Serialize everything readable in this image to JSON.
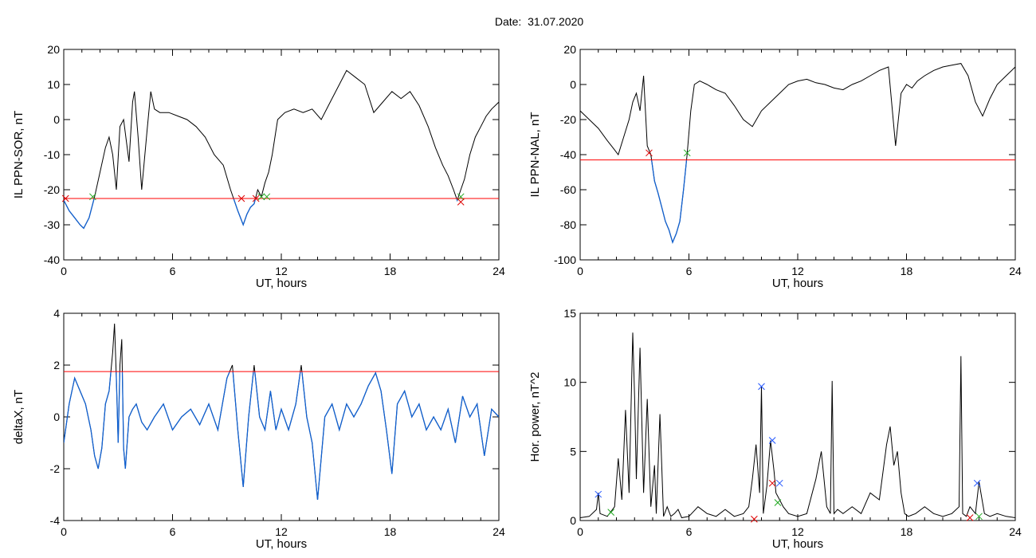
{
  "figure": {
    "title": "Date:  31.07.2020"
  },
  "colors": {
    "trace": "#000000",
    "threshold": "#ff0000",
    "below": "#1060d0",
    "start_marker": "#dd0000",
    "end_marker": "#22aa22",
    "peak_marker": "#2255ff"
  },
  "chart_data": [
    {
      "type": "line",
      "ylabel": "IL PPN-SOR, nT",
      "xlabel": "UT, hours",
      "xlim": [
        0,
        24
      ],
      "ylim": [
        -40,
        20
      ],
      "xticks": [
        "0",
        "6",
        "12",
        "18",
        "24"
      ],
      "yticks": [
        "-40",
        "-30",
        "-20",
        "-10",
        "0",
        "10",
        "20"
      ],
      "threshold": -22.5,
      "series": [
        {
          "x": [
            0,
            0.3,
            0.6,
            0.9,
            1.1,
            1.4,
            1.7,
            2.0,
            2.3,
            2.5,
            2.7,
            2.9,
            3.1,
            3.3,
            3.5,
            3.6,
            3.8,
            3.9,
            4.1,
            4.3,
            4.6,
            4.8,
            5.0,
            5.3,
            5.8,
            6.3,
            6.8,
            7.3,
            7.8,
            8.3,
            8.8,
            9.2,
            9.6,
            9.9,
            10.1,
            10.3,
            10.5,
            10.7,
            10.9,
            11.1,
            11.3,
            11.5,
            11.8,
            12.2,
            12.7,
            13.2,
            13.7,
            14.2,
            14.7,
            15.2,
            15.6,
            16.1,
            16.6,
            17.1,
            17.6,
            18.1,
            18.6,
            19.1,
            19.6,
            20.1,
            20.5,
            20.9,
            21.2,
            21.5,
            21.7,
            21.9,
            22.1,
            22.4,
            22.7,
            23.0,
            23.3,
            23.6,
            24.0
          ],
          "values": [
            -23,
            -26,
            -28,
            -30,
            -31,
            -28,
            -22,
            -15,
            -8,
            -5,
            -10,
            -20,
            -2,
            0,
            -8,
            -12,
            5,
            8,
            -5,
            -20,
            -3,
            8,
            3,
            2,
            2,
            1,
            0,
            -2,
            -5,
            -10,
            -13,
            -20,
            -26,
            -30,
            -27,
            -25,
            -24,
            -20,
            -22,
            -18,
            -15,
            -10,
            0,
            2,
            3,
            2,
            3,
            0,
            5,
            10,
            14,
            12,
            10,
            2,
            5,
            8,
            6,
            8,
            4,
            -2,
            -8,
            -13,
            -16,
            -20,
            -23,
            -20,
            -17,
            -10,
            -5,
            -2,
            1,
            3,
            5
          ]
        }
      ],
      "markers": [
        {
          "x": 0.1,
          "y": -22.5,
          "kind": "start"
        },
        {
          "x": 1.6,
          "y": -22.0,
          "kind": "end"
        },
        {
          "x": 9.8,
          "y": -22.5,
          "kind": "start"
        },
        {
          "x": 10.6,
          "y": -22.5,
          "kind": "start"
        },
        {
          "x": 10.9,
          "y": -22.0,
          "kind": "end"
        },
        {
          "x": 11.2,
          "y": -22.0,
          "kind": "end"
        },
        {
          "x": 21.9,
          "y": -22.0,
          "kind": "end"
        },
        {
          "x": 21.9,
          "y": -23.5,
          "kind": "start"
        }
      ]
    },
    {
      "type": "line",
      "ylabel": "IL PPN-NAL, nT",
      "xlabel": "UT, hours",
      "xlim": [
        0,
        24
      ],
      "ylim": [
        -100,
        20
      ],
      "xticks": [
        "0",
        "6",
        "12",
        "18",
        "24"
      ],
      "yticks": [
        "-100",
        "-80",
        "-60",
        "-40",
        "-20",
        "0",
        "20"
      ],
      "threshold": -43,
      "series": [
        {
          "x": [
            0,
            0.5,
            1.0,
            1.5,
            1.8,
            2.1,
            2.4,
            2.7,
            2.9,
            3.1,
            3.3,
            3.5,
            3.7,
            3.9,
            4.1,
            4.3,
            4.5,
            4.7,
            4.9,
            5.1,
            5.3,
            5.5,
            5.7,
            5.9,
            6.1,
            6.3,
            6.6,
            7.0,
            7.5,
            8.0,
            8.5,
            9.0,
            9.5,
            10.0,
            10.5,
            11.0,
            11.5,
            12.0,
            12.5,
            13.0,
            13.5,
            14.0,
            14.5,
            15.0,
            15.5,
            16.0,
            16.5,
            17.0,
            17.4,
            17.7,
            18.0,
            18.3,
            18.6,
            19.0,
            19.5,
            20.0,
            20.5,
            21.0,
            21.4,
            21.8,
            22.2,
            22.6,
            23.0,
            23.5,
            24.0
          ],
          "values": [
            -15,
            -20,
            -25,
            -32,
            -36,
            -40,
            -30,
            -20,
            -10,
            -5,
            -15,
            5,
            -35,
            -40,
            -55,
            -62,
            -70,
            -78,
            -83,
            -90,
            -85,
            -78,
            -60,
            -40,
            -15,
            0,
            2,
            0,
            -3,
            -5,
            -12,
            -20,
            -24,
            -15,
            -10,
            -5,
            0,
            2,
            3,
            1,
            0,
            -2,
            -3,
            0,
            2,
            5,
            8,
            10,
            -35,
            -5,
            0,
            -2,
            2,
            5,
            8,
            10,
            11,
            12,
            5,
            -10,
            -18,
            -8,
            0,
            5,
            10
          ]
        }
      ],
      "markers": [
        {
          "x": 3.8,
          "y": -39,
          "kind": "start"
        },
        {
          "x": 5.9,
          "y": -39,
          "kind": "end"
        }
      ]
    },
    {
      "type": "line",
      "ylabel": "deltaX, nT",
      "xlabel": "UT, hours",
      "xlim": [
        0,
        24
      ],
      "ylim": [
        -4,
        4
      ],
      "xticks": [
        "0",
        "6",
        "12",
        "18",
        "24"
      ],
      "yticks": [
        "-4",
        "-2",
        "0",
        "2",
        "4"
      ],
      "threshold": 1.75,
      "series": [
        {
          "x": [
            0,
            0.3,
            0.6,
            0.9,
            1.2,
            1.5,
            1.7,
            1.9,
            2.1,
            2.3,
            2.5,
            2.7,
            2.8,
            2.9,
            3.0,
            3.1,
            3.2,
            3.3,
            3.4,
            3.6,
            3.8,
            4.0,
            4.3,
            4.6,
            5.0,
            5.5,
            6.0,
            6.5,
            7.0,
            7.5,
            8.0,
            8.5,
            9.0,
            9.3,
            9.6,
            9.9,
            10.2,
            10.5,
            10.8,
            11.1,
            11.4,
            11.7,
            12.0,
            12.4,
            12.8,
            13.1,
            13.4,
            13.7,
            14.0,
            14.4,
            14.8,
            15.2,
            15.6,
            16.0,
            16.4,
            16.8,
            17.2,
            17.5,
            17.8,
            18.1,
            18.4,
            18.8,
            19.2,
            19.6,
            20.0,
            20.4,
            20.8,
            21.2,
            21.6,
            22.0,
            22.4,
            22.8,
            23.2,
            23.6,
            24.0
          ],
          "values": [
            -1.0,
            0.5,
            1.5,
            1.0,
            0.5,
            -0.5,
            -1.5,
            -2.0,
            -1.2,
            0.5,
            1.0,
            2.5,
            3.6,
            1.5,
            -1.0,
            2.0,
            3.0,
            -1.2,
            -2.0,
            0.0,
            0.3,
            0.5,
            -0.2,
            -0.5,
            0.0,
            0.5,
            -0.5,
            0.0,
            0.3,
            -0.3,
            0.5,
            -0.5,
            1.5,
            2.0,
            -0.5,
            -2.7,
            0.0,
            2.0,
            0.0,
            -0.5,
            1.0,
            -0.5,
            0.3,
            -0.5,
            0.5,
            2.0,
            0.0,
            -1.0,
            -3.2,
            0.0,
            0.5,
            -0.5,
            0.5,
            0.0,
            0.5,
            1.2,
            1.7,
            1.0,
            -0.5,
            -2.2,
            0.5,
            1.0,
            0.0,
            0.5,
            -0.5,
            0.0,
            -0.5,
            0.3,
            -1.0,
            0.8,
            0.0,
            0.5,
            -1.5,
            0.3,
            0.0
          ]
        }
      ]
    },
    {
      "type": "line",
      "ylabel": "Hor. power, nT^2",
      "xlabel": "UT, hours",
      "xlim": [
        0,
        24
      ],
      "ylim": [
        0,
        15
      ],
      "xticks": [
        "0",
        "6",
        "12",
        "18",
        "24"
      ],
      "yticks": [
        "0",
        "5",
        "10",
        "15"
      ],
      "series": [
        {
          "x": [
            0,
            0.5,
            0.9,
            1.0,
            1.1,
            1.5,
            1.9,
            2.1,
            2.3,
            2.5,
            2.7,
            2.9,
            3.0,
            3.1,
            3.3,
            3.5,
            3.7,
            3.9,
            4.1,
            4.2,
            4.4,
            4.6,
            4.8,
            5.0,
            5.2,
            5.4,
            5.6,
            6.0,
            6.5,
            7.0,
            7.5,
            8.0,
            8.5,
            9.0,
            9.3,
            9.5,
            9.7,
            9.9,
            10.0,
            10.1,
            10.3,
            10.5,
            10.7,
            10.8,
            11.0,
            11.2,
            11.5,
            12.0,
            12.5,
            13.0,
            13.3,
            13.6,
            13.8,
            13.9,
            14.0,
            14.2,
            14.5,
            15.0,
            15.5,
            16.0,
            16.5,
            16.9,
            17.1,
            17.3,
            17.5,
            17.7,
            17.9,
            18.1,
            18.5,
            19.0,
            19.5,
            20.0,
            20.5,
            20.9,
            21.0,
            21.1,
            21.3,
            21.5,
            21.8,
            22.0,
            22.3,
            22.6,
            23.0,
            23.5,
            24.0
          ],
          "values": [
            0.2,
            0.3,
            0.8,
            2.0,
            0.5,
            0.3,
            1.0,
            4.5,
            1.5,
            8.0,
            2.0,
            13.6,
            9.0,
            3.0,
            12.5,
            2.0,
            8.8,
            1.0,
            4.0,
            0.5,
            7.7,
            0.3,
            1.0,
            0.3,
            0.5,
            0.8,
            0.2,
            0.3,
            1.0,
            0.5,
            0.3,
            0.8,
            0.3,
            0.5,
            1.0,
            3.0,
            5.5,
            2.0,
            9.7,
            0.5,
            2.5,
            5.8,
            3.5,
            2.0,
            1.5,
            1.0,
            0.5,
            0.3,
            0.5,
            3.0,
            5.0,
            1.0,
            0.5,
            10.1,
            0.5,
            0.8,
            0.5,
            1.0,
            0.5,
            2.0,
            1.5,
            5.5,
            6.8,
            4.0,
            5.0,
            2.0,
            0.5,
            0.3,
            0.5,
            1.0,
            0.5,
            0.3,
            0.5,
            1.0,
            11.9,
            0.5,
            0.3,
            1.0,
            0.5,
            2.8,
            0.5,
            0.3,
            0.5,
            0.3,
            0.2
          ]
        }
      ],
      "markers": [
        {
          "x": 1.0,
          "y": 1.9,
          "kind": "peak"
        },
        {
          "x": 1.7,
          "y": 0.6,
          "kind": "end"
        },
        {
          "x": 10.0,
          "y": 9.7,
          "kind": "peak"
        },
        {
          "x": 9.6,
          "y": 0.1,
          "kind": "start"
        },
        {
          "x": 10.6,
          "y": 5.8,
          "kind": "peak"
        },
        {
          "x": 10.6,
          "y": 2.7,
          "kind": "start"
        },
        {
          "x": 11.0,
          "y": 2.7,
          "kind": "peak"
        },
        {
          "x": 10.9,
          "y": 1.3,
          "kind": "end"
        },
        {
          "x": 21.9,
          "y": 2.7,
          "kind": "peak"
        },
        {
          "x": 21.5,
          "y": 0.2,
          "kind": "start"
        },
        {
          "x": 22.0,
          "y": 0.3,
          "kind": "end"
        }
      ]
    }
  ]
}
